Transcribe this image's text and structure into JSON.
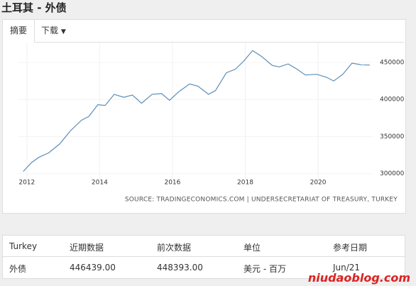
{
  "header": {
    "title": "土耳其 - 外债"
  },
  "tabs": [
    "摘要",
    "下载"
  ],
  "chart_data": {
    "type": "line",
    "x": [
      2011.9,
      2012.13,
      2012.33,
      2012.6,
      2012.9,
      2013.2,
      2013.5,
      2013.7,
      2013.95,
      2014.15,
      2014.4,
      2014.66,
      2014.9,
      2015.15,
      2015.44,
      2015.7,
      2015.92,
      2016.16,
      2016.47,
      2016.7,
      2016.99,
      2017.18,
      2017.48,
      2017.73,
      2017.96,
      2018.2,
      2018.45,
      2018.74,
      2018.93,
      2019.18,
      2019.42,
      2019.65,
      2019.96,
      2020.23,
      2020.43,
      2020.68,
      2020.93,
      2021.17,
      2021.42
    ],
    "series": [
      {
        "color": "#5b8db8",
        "values": [
          303000,
          315000,
          322000,
          328000,
          340000,
          358000,
          372000,
          377000,
          393000,
          392000,
          407000,
          403000,
          406000,
          395000,
          407000,
          408000,
          399000,
          410000,
          421000,
          418000,
          407000,
          412000,
          436000,
          441000,
          452000,
          466000,
          458000,
          446000,
          444000,
          448000,
          441000,
          433000,
          434000,
          430000,
          425000,
          434000,
          449000,
          447000,
          446439
        ]
      }
    ],
    "xlim": [
      2011.75,
      2021.5
    ],
    "xticks": [
      2012,
      2014,
      2016,
      2018,
      2020
    ],
    "ylim": [
      293000,
      472000
    ],
    "yticks": [
      300000,
      350000,
      400000,
      450000
    ],
    "grid": true,
    "source": "SOURCE: TRADINGECONOMICS.COM | UNDERSECRETARIAT OF TREASURY, TURKEY"
  },
  "table": {
    "header": [
      "Turkey",
      "近期数据",
      "前次数据",
      "单位",
      "参考日期"
    ],
    "rows": [
      [
        "外债",
        "446439.00",
        "448393.00",
        "美元 - 百万",
        "Jun/21"
      ]
    ]
  },
  "watermark": "niudaoblog.com"
}
